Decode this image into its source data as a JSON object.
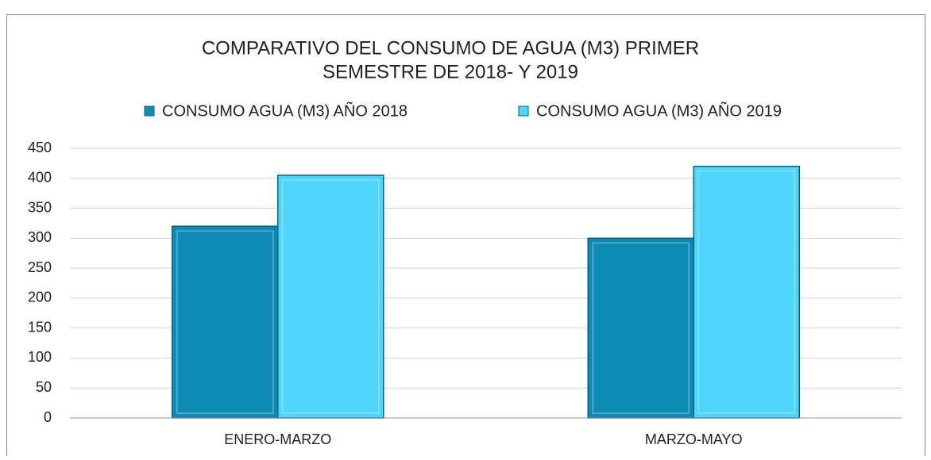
{
  "chart_data": {
    "type": "bar",
    "title": [
      "COMPARATIVO DEL CONSUMO DE AGUA (M3)  PRIMER",
      "SEMESTRE DE 2018- Y 2019"
    ],
    "categories": [
      "ENERO-MARZO",
      "MARZO-MAYO"
    ],
    "series": [
      {
        "name": "CONSUMO AGUA  (M3) AÑO 2018",
        "color": "#0e8bb5",
        "values": [
          320,
          300
        ]
      },
      {
        "name": "CONSUMO AGUA  (M3) AÑO 2019",
        "color": "#4dd5fb",
        "values": [
          405,
          420
        ]
      }
    ],
    "ylim": [
      0,
      450
    ],
    "yticks": [
      0,
      50,
      100,
      150,
      200,
      250,
      300,
      350,
      400,
      450
    ],
    "grid": true,
    "legend": "top"
  }
}
